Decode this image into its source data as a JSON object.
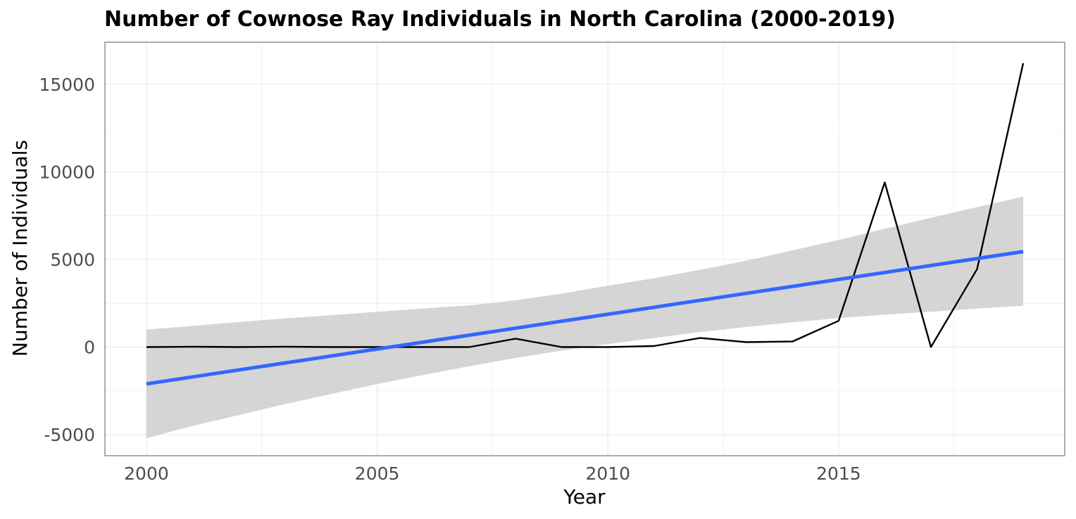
{
  "chart_data": {
    "type": "line",
    "title": "Number of Cownose Ray Individuals in North Carolina (2000-2019)",
    "xlabel": "Year",
    "ylabel": "Number of Individuals",
    "xlim": [
      1999.1,
      2019.9
    ],
    "ylim": [
      -6200,
      17400
    ],
    "x_ticks": [
      2000,
      2005,
      2010,
      2015
    ],
    "y_ticks": [
      -5000,
      0,
      5000,
      10000,
      15000
    ],
    "x_tick_labels": [
      "2000",
      "2005",
      "2010",
      "2015"
    ],
    "y_tick_labels": [
      "-5000",
      "0",
      "5000",
      "10000",
      "15000"
    ],
    "grid": true,
    "legend": "none",
    "series": [
      {
        "values": [
          0,
          20,
          0,
          20,
          0,
          0,
          0,
          0,
          480,
          0,
          0,
          60,
          520,
          280,
          320,
          1500,
          9400,
          0,
          4450,
          16200
        ]
      }
    ],
    "x": [
      2000,
      2001,
      2002,
      2003,
      2004,
      2005,
      2006,
      2007,
      2008,
      2009,
      2010,
      2011,
      2012,
      2013,
      2014,
      2015,
      2016,
      2017,
      2018,
      2019
    ],
    "trend": {
      "method": "linear",
      "x": [
        2000,
        2019
      ],
      "fit": [
        -2100,
        5450
      ],
      "ci_x": [
        2000,
        2001,
        2002,
        2003,
        2004,
        2005,
        2006,
        2007,
        2008,
        2009,
        2010,
        2011,
        2012,
        2013,
        2014,
        2015,
        2016,
        2017,
        2018,
        2019
      ],
      "ci_lower": [
        -5200,
        -4500,
        -3880,
        -3260,
        -2680,
        -2110,
        -1590,
        -1090,
        -620,
        -200,
        170,
        520,
        860,
        1150,
        1410,
        1660,
        1850,
        2020,
        2200,
        2360
      ],
      "ci_upper": [
        1000,
        1210,
        1430,
        1640,
        1820,
        2010,
        2200,
        2380,
        2670,
        3050,
        3500,
        3930,
        4410,
        4930,
        5520,
        6110,
        6750,
        7380,
        7990,
        8590
      ]
    },
    "colors": {
      "line": "#000000",
      "trend": "#3366ff",
      "ribbon": "#d3d3d3",
      "grid": "#ebebeb",
      "panel_border": "#7f7f7f"
    }
  }
}
